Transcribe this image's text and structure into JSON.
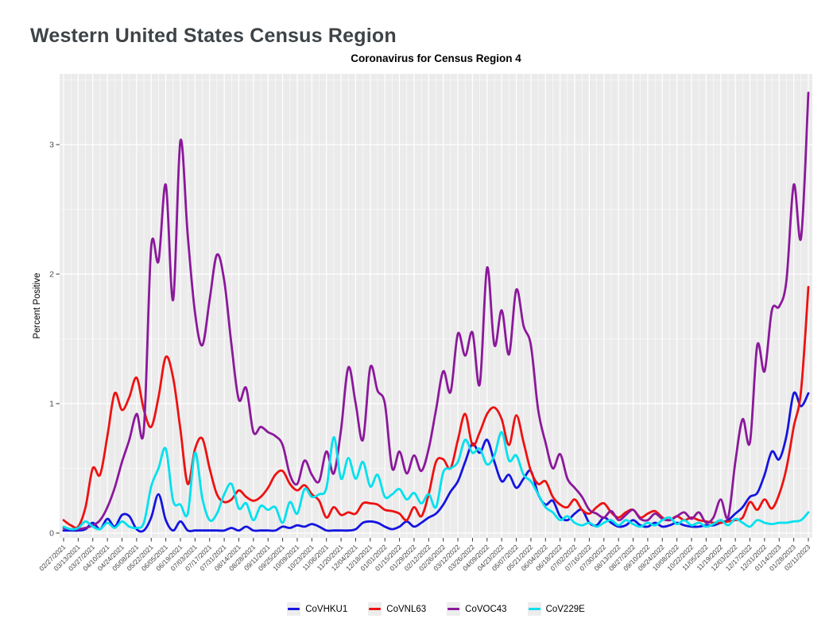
{
  "page": {
    "title": "Western United States Census Region"
  },
  "chart_data": {
    "type": "line",
    "title": "Coronavirus for Census Region 4",
    "xlabel": "",
    "ylabel": "Percent Positive",
    "ylim": [
      0,
      3.58
    ],
    "y_ticks": [
      0,
      1,
      2,
      3
    ],
    "grid": true,
    "panel_background": "#ebebeb",
    "grid_color": "#ffffff",
    "legend_position": "bottom",
    "x_tick_labels": [
      "02/27/2021",
      "03/13/2021",
      "03/27/2021",
      "04/10/2021",
      "04/24/2021",
      "05/08/2021",
      "05/22/2021",
      "06/05/2021",
      "06/19/2021",
      "07/03/2021",
      "07/17/2021",
      "07/31/2021",
      "08/14/2021",
      "08/28/2021",
      "09/11/2021",
      "09/25/2021",
      "10/09/2021",
      "10/23/2021",
      "11/06/2021",
      "11/20/2021",
      "12/04/2021",
      "12/18/2021",
      "01/01/2022",
      "01/15/2022",
      "01/29/2022",
      "02/12/2022",
      "02/26/2022",
      "03/12/2022",
      "03/26/2022",
      "04/09/2022",
      "04/23/2022",
      "05/07/2022",
      "05/21/2022",
      "06/04/2022",
      "06/18/2022",
      "07/02/2022",
      "07/16/2022",
      "07/30/2022",
      "08/13/2022",
      "08/27/2022",
      "09/10/2022",
      "09/24/2022",
      "10/08/2022",
      "10/22/2022",
      "11/05/2022",
      "11/19/2022",
      "12/03/2022",
      "12/17/2022",
      "12/31/2022",
      "01/14/2023",
      "01/28/2023",
      "02/11/2023"
    ],
    "x_unit": "weekly points, labels shown every 2 weeks",
    "series": [
      {
        "name": "CoVHKU1",
        "color": "#1414e0",
        "values": [
          0.02,
          0.02,
          0.02,
          0.03,
          0.08,
          0.03,
          0.11,
          0.05,
          0.14,
          0.13,
          0.03,
          0.02,
          0.12,
          0.3,
          0.1,
          0.02,
          0.09,
          0.02,
          0.02,
          0.02,
          0.02,
          0.02,
          0.02,
          0.04,
          0.02,
          0.05,
          0.02,
          0.02,
          0.02,
          0.02,
          0.05,
          0.04,
          0.06,
          0.05,
          0.07,
          0.05,
          0.02,
          0.02,
          0.02,
          0.02,
          0.03,
          0.08,
          0.09,
          0.08,
          0.05,
          0.03,
          0.05,
          0.09,
          0.05,
          0.08,
          0.12,
          0.15,
          0.22,
          0.32,
          0.4,
          0.55,
          0.69,
          0.62,
          0.72,
          0.55,
          0.4,
          0.45,
          0.35,
          0.42,
          0.48,
          0.3,
          0.22,
          0.25,
          0.13,
          0.1,
          0.15,
          0.18,
          0.08,
          0.06,
          0.12,
          0.08,
          0.05,
          0.06,
          0.1,
          0.06,
          0.05,
          0.08,
          0.05,
          0.06,
          0.08,
          0.06,
          0.05,
          0.05,
          0.06,
          0.06,
          0.08,
          0.1,
          0.15,
          0.2,
          0.28,
          0.31,
          0.45,
          0.63,
          0.57,
          0.75,
          1.08,
          0.98,
          1.08
        ]
      },
      {
        "name": "CoVNL63",
        "color": "#ee1111",
        "values": [
          0.1,
          0.06,
          0.05,
          0.2,
          0.5,
          0.45,
          0.75,
          1.08,
          0.95,
          1.05,
          1.2,
          0.95,
          0.82,
          1.05,
          1.36,
          1.2,
          0.8,
          0.38,
          0.65,
          0.73,
          0.5,
          0.3,
          0.24,
          0.26,
          0.33,
          0.28,
          0.25,
          0.28,
          0.35,
          0.45,
          0.48,
          0.38,
          0.33,
          0.37,
          0.3,
          0.25,
          0.12,
          0.2,
          0.14,
          0.16,
          0.15,
          0.23,
          0.23,
          0.22,
          0.18,
          0.17,
          0.15,
          0.1,
          0.2,
          0.13,
          0.3,
          0.55,
          0.57,
          0.5,
          0.72,
          0.92,
          0.68,
          0.78,
          0.92,
          0.97,
          0.88,
          0.68,
          0.91,
          0.7,
          0.48,
          0.38,
          0.4,
          0.28,
          0.22,
          0.2,
          0.26,
          0.18,
          0.15,
          0.2,
          0.23,
          0.16,
          0.12,
          0.16,
          0.18,
          0.12,
          0.15,
          0.17,
          0.12,
          0.1,
          0.13,
          0.1,
          0.12,
          0.1,
          0.09,
          0.08,
          0.08,
          0.09,
          0.1,
          0.12,
          0.24,
          0.18,
          0.26,
          0.19,
          0.3,
          0.5,
          0.82,
          1.1,
          1.9
        ]
      },
      {
        "name": "CoVOC43",
        "color": "#8b189b",
        "values": [
          0.04,
          0.03,
          0.03,
          0.04,
          0.06,
          0.1,
          0.2,
          0.35,
          0.55,
          0.72,
          0.92,
          0.8,
          2.21,
          2.1,
          2.69,
          1.8,
          3.03,
          2.3,
          1.7,
          1.45,
          1.8,
          2.15,
          1.95,
          1.45,
          1.03,
          1.12,
          0.78,
          0.82,
          0.78,
          0.75,
          0.68,
          0.45,
          0.38,
          0.56,
          0.45,
          0.4,
          0.63,
          0.46,
          0.8,
          1.28,
          1.0,
          0.72,
          1.28,
          1.1,
          1.0,
          0.5,
          0.63,
          0.46,
          0.6,
          0.48,
          0.65,
          0.95,
          1.25,
          1.09,
          1.54,
          1.37,
          1.55,
          1.15,
          2.05,
          1.45,
          1.72,
          1.38,
          1.88,
          1.6,
          1.45,
          0.95,
          0.7,
          0.5,
          0.61,
          0.42,
          0.35,
          0.28,
          0.18,
          0.15,
          0.12,
          0.17,
          0.1,
          0.14,
          0.18,
          0.11,
          0.1,
          0.15,
          0.11,
          0.1,
          0.13,
          0.16,
          0.11,
          0.16,
          0.08,
          0.12,
          0.26,
          0.12,
          0.55,
          0.88,
          0.7,
          1.45,
          1.25,
          1.72,
          1.75,
          1.95,
          2.69,
          2.28,
          3.4
        ]
      },
      {
        "name": "CoV229E",
        "color": "#00e0ee",
        "values": [
          0.05,
          0.03,
          0.04,
          0.09,
          0.05,
          0.03,
          0.08,
          0.04,
          0.09,
          0.05,
          0.04,
          0.08,
          0.36,
          0.5,
          0.65,
          0.25,
          0.22,
          0.15,
          0.62,
          0.27,
          0.1,
          0.15,
          0.3,
          0.38,
          0.19,
          0.23,
          0.1,
          0.21,
          0.18,
          0.2,
          0.08,
          0.24,
          0.15,
          0.34,
          0.28,
          0.3,
          0.35,
          0.74,
          0.42,
          0.58,
          0.42,
          0.55,
          0.36,
          0.45,
          0.28,
          0.3,
          0.34,
          0.26,
          0.31,
          0.23,
          0.3,
          0.2,
          0.47,
          0.5,
          0.55,
          0.72,
          0.62,
          0.65,
          0.53,
          0.6,
          0.78,
          0.56,
          0.6,
          0.45,
          0.4,
          0.3,
          0.2,
          0.16,
          0.1,
          0.13,
          0.08,
          0.06,
          0.08,
          0.05,
          0.08,
          0.1,
          0.06,
          0.1,
          0.07,
          0.05,
          0.08,
          0.06,
          0.1,
          0.12,
          0.07,
          0.1,
          0.06,
          0.08,
          0.05,
          0.07,
          0.1,
          0.06,
          0.11,
          0.08,
          0.05,
          0.1,
          0.08,
          0.07,
          0.08,
          0.08,
          0.09,
          0.1,
          0.16
        ]
      }
    ]
  }
}
